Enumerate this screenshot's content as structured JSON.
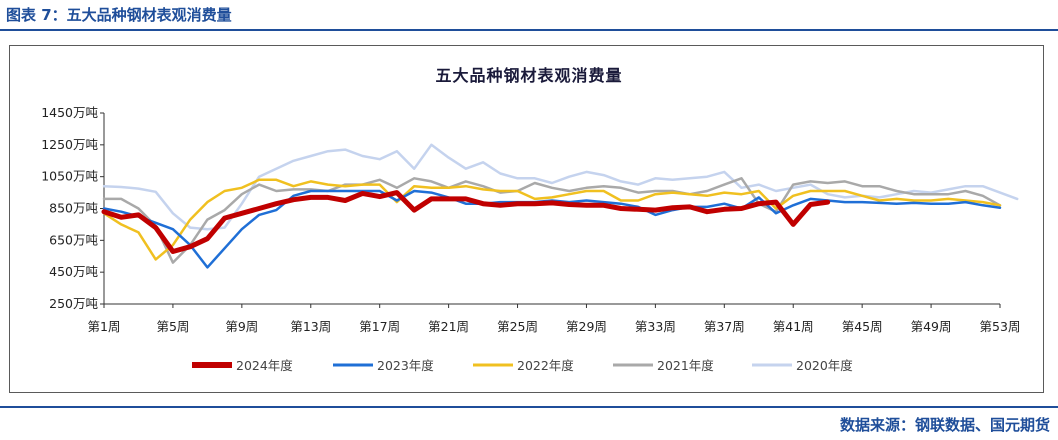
{
  "figure_title": "图表 7：五大品种钢材表观消费量",
  "source": "数据来源：钢联数据、国元期货",
  "chart_data": {
    "type": "line",
    "title": "五大品种钢材表观消费量",
    "ylim": [
      250,
      1450
    ],
    "yticks": [
      250,
      450,
      650,
      850,
      1050,
      1250,
      1450
    ],
    "ytick_labels": [
      "250万吨",
      "450万吨",
      "650万吨",
      "850万吨",
      "1050万吨",
      "1250万吨",
      "1450万吨"
    ],
    "xlim": [
      1,
      53
    ],
    "xticks": [
      1,
      5,
      9,
      13,
      17,
      21,
      25,
      29,
      33,
      37,
      41,
      45,
      49,
      53
    ],
    "xtick_labels": [
      "第1周",
      "第5周",
      "第9周",
      "第13周",
      "第17周",
      "第21周",
      "第25周",
      "第29周",
      "第33周",
      "第37周",
      "第41周",
      "第45周",
      "第49周",
      "第53周"
    ],
    "legend_position": "bottom",
    "grid": false,
    "series": [
      {
        "name": "2024年度",
        "color": "#c00000",
        "width": 5,
        "x": [
          1,
          2,
          3,
          4,
          5,
          6,
          7,
          8,
          9,
          10,
          11,
          12,
          13,
          14,
          15,
          16,
          17,
          18,
          19,
          20,
          21,
          22,
          23,
          24,
          25,
          26,
          27,
          28,
          29,
          30,
          31,
          32,
          33,
          34,
          35,
          36,
          37,
          38,
          39,
          40,
          41,
          42,
          43
        ],
        "values": [
          830,
          795,
          810,
          730,
          580,
          610,
          660,
          790,
          820,
          850,
          880,
          905,
          920,
          920,
          900,
          945,
          925,
          950,
          840,
          910,
          910,
          910,
          880,
          870,
          880,
          880,
          885,
          875,
          870,
          870,
          850,
          845,
          840,
          855,
          860,
          830,
          845,
          850,
          880,
          890,
          750,
          875,
          890
        ]
      },
      {
        "name": "2023年度",
        "color": "#1f6fd6",
        "width": 2.5,
        "x": [
          1,
          2,
          3,
          4,
          5,
          6,
          7,
          8,
          9,
          10,
          11,
          12,
          13,
          14,
          15,
          16,
          17,
          18,
          19,
          20,
          21,
          22,
          23,
          24,
          25,
          26,
          27,
          28,
          29,
          30,
          31,
          32,
          33,
          34,
          35,
          36,
          37,
          38,
          39,
          40,
          41,
          42,
          43,
          44,
          45,
          46,
          47,
          48,
          49,
          50,
          51,
          52,
          53
        ],
        "values": [
          850,
          830,
          800,
          760,
          720,
          620,
          480,
          600,
          720,
          810,
          840,
          930,
          960,
          960,
          960,
          960,
          960,
          900,
          960,
          950,
          920,
          880,
          880,
          890,
          890,
          890,
          900,
          890,
          900,
          890,
          880,
          860,
          810,
          840,
          860,
          860,
          880,
          850,
          920,
          820,
          870,
          910,
          900,
          890,
          890,
          885,
          880,
          885,
          880,
          880,
          890,
          870,
          855
        ]
      },
      {
        "name": "2022年度",
        "color": "#f0c020",
        "width": 2.5,
        "x": [
          1,
          2,
          3,
          4,
          5,
          6,
          7,
          8,
          9,
          10,
          11,
          12,
          13,
          14,
          15,
          16,
          17,
          18,
          19,
          20,
          21,
          22,
          23,
          24,
          25,
          26,
          27,
          28,
          29,
          30,
          31,
          32,
          33,
          34,
          35,
          36,
          37,
          38,
          39,
          40,
          41,
          42,
          43,
          44,
          45,
          46,
          47,
          48,
          49,
          50,
          51,
          52,
          53
        ],
        "values": [
          820,
          750,
          700,
          530,
          620,
          780,
          890,
          960,
          980,
          1030,
          1030,
          990,
          1020,
          1000,
          990,
          1000,
          1000,
          890,
          990,
          980,
          980,
          990,
          970,
          960,
          960,
          910,
          920,
          940,
          960,
          960,
          900,
          900,
          940,
          950,
          940,
          930,
          950,
          940,
          960,
          850,
          930,
          960,
          960,
          960,
          930,
          900,
          910,
          900,
          900,
          910,
          900,
          890,
          870
        ]
      },
      {
        "name": "2021年度",
        "color": "#a9a9a9",
        "width": 2.5,
        "x": [
          1,
          2,
          3,
          4,
          5,
          6,
          7,
          8,
          9,
          10,
          11,
          12,
          13,
          14,
          15,
          16,
          17,
          18,
          19,
          20,
          21,
          22,
          23,
          24,
          25,
          26,
          27,
          28,
          29,
          30,
          31,
          32,
          33,
          34,
          35,
          36,
          37,
          38,
          39,
          40,
          41,
          42,
          43,
          44,
          45,
          46,
          47,
          48,
          49,
          50,
          51,
          52,
          53
        ],
        "values": [
          910,
          910,
          850,
          740,
          510,
          620,
          780,
          840,
          940,
          1000,
          960,
          970,
          970,
          960,
          1000,
          1000,
          1030,
          980,
          1040,
          1020,
          980,
          1020,
          990,
          950,
          960,
          1010,
          980,
          960,
          980,
          990,
          980,
          950,
          960,
          960,
          940,
          960,
          1000,
          1040,
          880,
          830,
          1000,
          1020,
          1010,
          1020,
          990,
          990,
          960,
          940,
          940,
          940,
          960,
          930,
          870
        ]
      },
      {
        "name": "2020年度",
        "color": "#c5d3ee",
        "width": 2.5,
        "x": [
          1,
          2,
          3,
          4,
          5,
          6,
          7,
          8,
          9,
          10,
          11,
          12,
          13,
          14,
          15,
          16,
          17,
          18,
          19,
          20,
          21,
          22,
          23,
          24,
          25,
          26,
          27,
          28,
          29,
          30,
          31,
          32,
          33,
          34,
          35,
          36,
          37,
          38,
          39,
          40,
          41,
          42,
          43,
          44,
          45,
          46,
          47,
          48,
          49,
          50,
          51,
          52,
          53,
          54
        ],
        "values": [
          990,
          985,
          975,
          955,
          820,
          730,
          720,
          730,
          880,
          1050,
          1100,
          1150,
          1180,
          1210,
          1220,
          1180,
          1160,
          1210,
          1100,
          1250,
          1170,
          1100,
          1140,
          1070,
          1040,
          1040,
          1010,
          1050,
          1080,
          1060,
          1020,
          1000,
          1040,
          1030,
          1040,
          1050,
          1080,
          980,
          1000,
          960,
          980,
          1000,
          940,
          920,
          930,
          920,
          940,
          960,
          950,
          970,
          990,
          990,
          950,
          910
        ]
      }
    ]
  }
}
